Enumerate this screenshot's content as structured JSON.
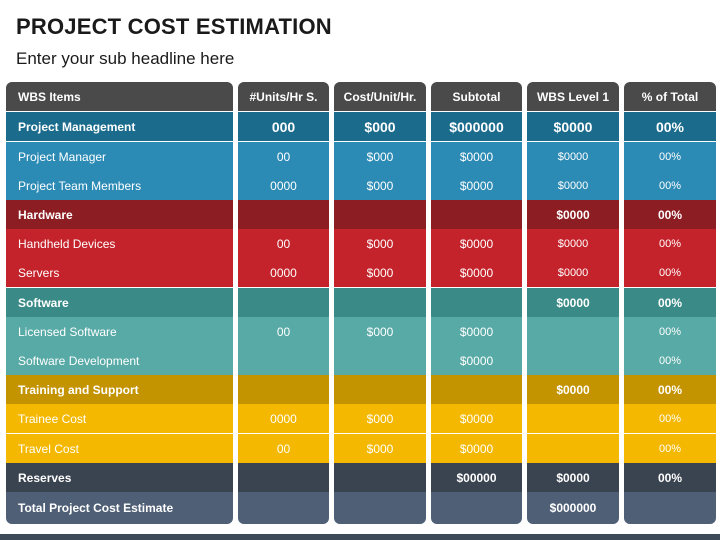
{
  "title": "PROJECT COST ESTIMATION",
  "subtitle": "Enter your sub headline here",
  "colors": {
    "header": "#4a4a4a",
    "pm_dark": "#1a6b8c",
    "pm_light": "#2c8bb5",
    "hw_dark": "#8c1d22",
    "hw_light": "#c5232b",
    "sw_dark": "#3a8a87",
    "sw_light": "#58aaa6",
    "ts_dark": "#c49300",
    "ts_light": "#f4b800",
    "reserve": "#3a4350",
    "total": "#4f5f75"
  },
  "headers": [
    "WBS Items",
    "#Units/Hr S.",
    "Cost/Unit/Hr.",
    "Subtotal",
    "WBS Level 1",
    "% of Total"
  ],
  "rows": [
    {
      "kind": "pm_dark",
      "item": "Project Management",
      "units": "000",
      "cost": "$000",
      "subtotal": "$000000",
      "wbs": "$0000",
      "pct": "00%"
    },
    {
      "kind": "pm_light",
      "item": "Project Manager",
      "units": "00",
      "cost": "$000",
      "subtotal": "$0000",
      "wbs": "$0000",
      "pct": "00%"
    },
    {
      "kind": "pm_light",
      "item": "Project Team Members",
      "units": "0000",
      "cost": "$000",
      "subtotal": "$0000",
      "wbs": "$0000",
      "pct": "00%"
    },
    {
      "kind": "hw_dark",
      "item": "Hardware",
      "units": "",
      "cost": "",
      "subtotal": "",
      "wbs": "$0000",
      "pct": "00%"
    },
    {
      "kind": "hw_light",
      "item": "Handheld Devices",
      "units": "00",
      "cost": "$000",
      "subtotal": "$0000",
      "wbs": "$0000",
      "pct": "00%"
    },
    {
      "kind": "hw_light",
      "item": "Servers",
      "units": "0000",
      "cost": "$000",
      "subtotal": "$0000",
      "wbs": "$0000",
      "pct": "00%"
    },
    {
      "kind": "sw_dark",
      "item": "Software",
      "units": "",
      "cost": "",
      "subtotal": "",
      "wbs": "$0000",
      "pct": "00%"
    },
    {
      "kind": "sw_light",
      "item": "Licensed Software",
      "units": "00",
      "cost": "$000",
      "subtotal": "$0000",
      "wbs": "",
      "pct": "00%"
    },
    {
      "kind": "sw_light",
      "item": "Software Development",
      "units": "",
      "cost": "",
      "subtotal": "$0000",
      "wbs": "",
      "pct": "00%"
    },
    {
      "kind": "ts_dark",
      "item": "Training and Support",
      "units": "",
      "cost": "",
      "subtotal": "",
      "wbs": "$0000",
      "pct": "00%"
    },
    {
      "kind": "ts_light",
      "item": "Trainee Cost",
      "units": "0000",
      "cost": "$000",
      "subtotal": "$0000",
      "wbs": "",
      "pct": "00%"
    },
    {
      "kind": "ts_light",
      "item": "Travel Cost",
      "units": "00",
      "cost": "$000",
      "subtotal": "$0000",
      "wbs": "",
      "pct": "00%"
    },
    {
      "kind": "reserve",
      "item": "Reserves",
      "units": "",
      "cost": "",
      "subtotal": "$00000",
      "wbs": "$0000",
      "pct": "00%"
    },
    {
      "kind": "total",
      "item": "Total Project Cost Estimate",
      "units": "",
      "cost": "",
      "subtotal": "",
      "wbs": "$000000",
      "pct": ""
    }
  ]
}
